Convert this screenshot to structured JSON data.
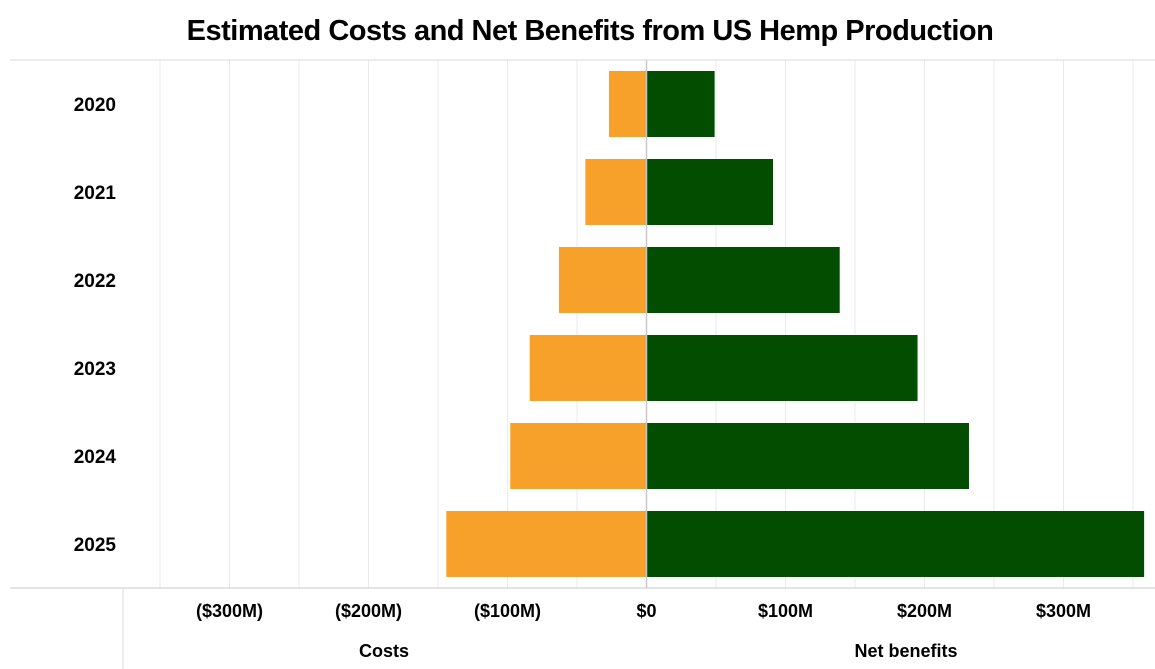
{
  "chart_data": {
    "type": "bar",
    "orientation": "horizontal",
    "layout": "diverging",
    "title": "Estimated Costs and Net Benefits from US Hemp Production",
    "categories": [
      "2020",
      "2021",
      "2022",
      "2023",
      "2024",
      "2025"
    ],
    "series": [
      {
        "name": "Costs",
        "color": "#F7A02A",
        "values": [
          -27,
          -44,
          -63,
          -84,
          -98,
          -144
        ]
      },
      {
        "name": "Net benefits",
        "color": "#034D01",
        "values": [
          49,
          91,
          139,
          195,
          232,
          358
        ]
      }
    ],
    "x_ticks": [
      {
        "value": -300,
        "label": "($300M)"
      },
      {
        "value": -200,
        "label": "($200M)"
      },
      {
        "value": -100,
        "label": "($100M)"
      },
      {
        "value": 0,
        "label": "$0"
      },
      {
        "value": 100,
        "label": "$100M"
      },
      {
        "value": 200,
        "label": "$200M"
      },
      {
        "value": 300,
        "label": "$300M"
      }
    ],
    "xlim": [
      -365,
      365
    ],
    "xlabel_negative": "Costs",
    "xlabel_positive": "Net benefits",
    "grid": true,
    "colors": {
      "costs": "#F7A02A",
      "net_benefits": "#034D01",
      "grid": "#EBEBEB",
      "axis": "#C8C8C8",
      "zero_line": "#C8C8C8"
    }
  }
}
